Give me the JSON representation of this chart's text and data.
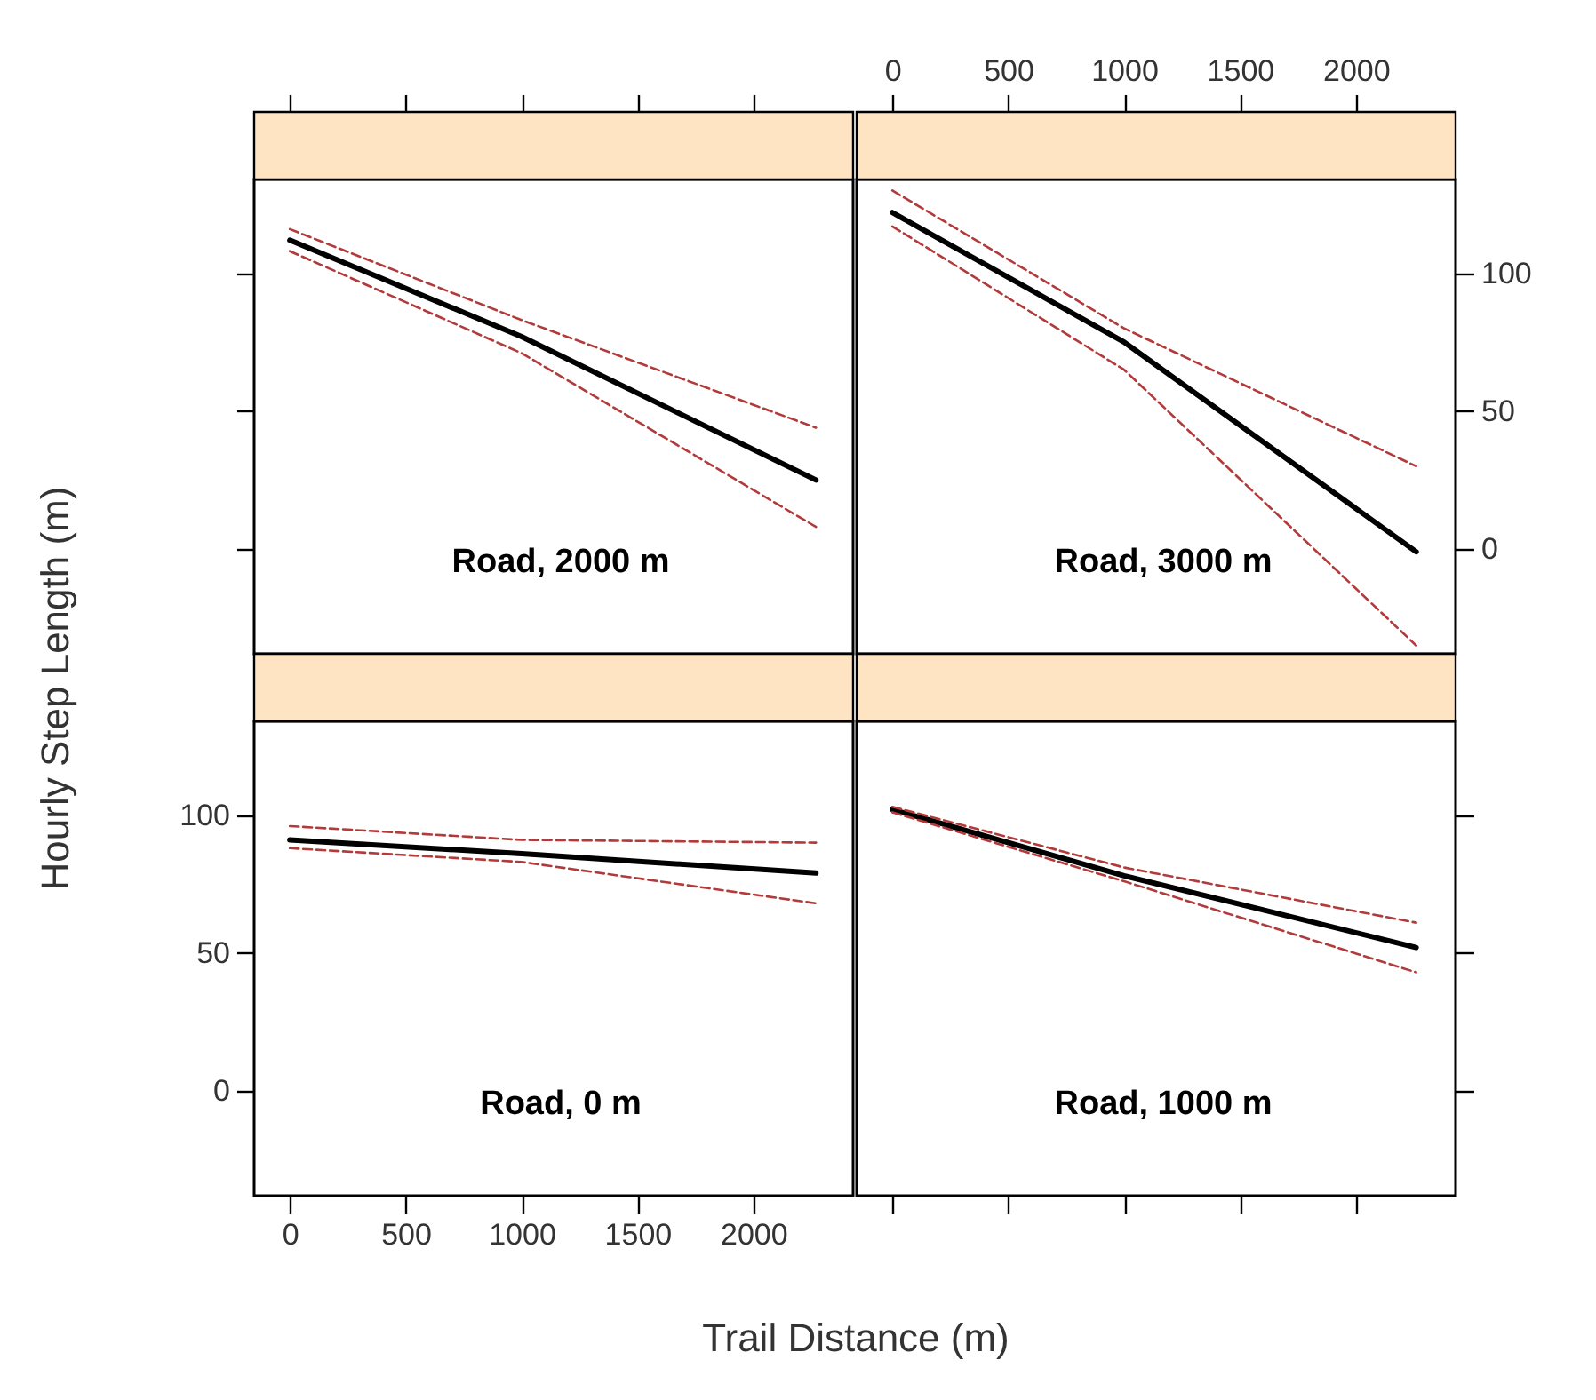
{
  "chart_data": [
    {
      "type": "line",
      "annotations": [
        "Road, 2000 m"
      ],
      "x": [
        0,
        1000,
        2270
      ],
      "xlim": [
        -154,
        2430
      ],
      "xticks": [
        0,
        500,
        1000,
        1500,
        2000
      ],
      "ylim": [
        -38,
        134
      ],
      "yticks": [
        0,
        50,
        100
      ],
      "tick_labels": false,
      "series": [
        {
          "color": "#000000",
          "values": [
            112,
            77,
            25
          ],
          "line_style": "solid"
        },
        {
          "color": "#b23a3a",
          "values": [
            116,
            83,
            44
          ],
          "line_style": "dashed"
        },
        {
          "color": "#b23a3a",
          "values": [
            108,
            71,
            8
          ],
          "line_style": "dashed"
        }
      ]
    },
    {
      "type": "line",
      "annotations": [
        "Road, 3000 m"
      ],
      "x": [
        0,
        1000,
        2260
      ],
      "xlim": [
        -154,
        2430
      ],
      "xticks": [
        0,
        500,
        1000,
        1500,
        2000
      ],
      "ylim": [
        -38,
        134
      ],
      "yticks": [
        0,
        50,
        100
      ],
      "series": [
        {
          "color": "#000000",
          "values": [
            122,
            75,
            -1
          ],
          "line_style": "solid"
        },
        {
          "color": "#b23a3a",
          "values": [
            130,
            80,
            30
          ],
          "line_style": "dashed"
        },
        {
          "color": "#b23a3a",
          "values": [
            117,
            65,
            -35
          ],
          "line_style": "dashed"
        }
      ]
    },
    {
      "type": "line",
      "annotations": [
        "Road, 0 m"
      ],
      "xlabel": "Trail Distance (m)",
      "ylabel": "Hourly Step Length (m)",
      "x": [
        0,
        1000,
        2270
      ],
      "xlim": [
        -154,
        2430
      ],
      "xticks": [
        0,
        500,
        1000,
        1500,
        2000
      ],
      "ylim": [
        -38,
        134
      ],
      "yticks": [
        0,
        50,
        100
      ],
      "series": [
        {
          "color": "#000000",
          "values": [
            91,
            86,
            79
          ],
          "line_style": "solid"
        },
        {
          "color": "#b23a3a",
          "values": [
            96,
            91,
            90
          ],
          "line_style": "dashed"
        },
        {
          "color": "#b23a3a",
          "values": [
            88,
            83,
            68
          ],
          "line_style": "dashed"
        }
      ]
    },
    {
      "type": "line",
      "annotations": [
        "Road, 1000 m"
      ],
      "x": [
        0,
        1000,
        2260
      ],
      "xlim": [
        -154,
        2430
      ],
      "xticks": [
        0,
        500,
        1000,
        1500,
        2000
      ],
      "ylim": [
        -38,
        134
      ],
      "yticks": [
        0,
        50,
        100
      ],
      "tick_labels": false,
      "series": [
        {
          "color": "#000000",
          "values": [
            102,
            78,
            52
          ],
          "line_style": "solid"
        },
        {
          "color": "#b23a3a",
          "values": [
            103,
            81,
            61
          ],
          "line_style": "dashed"
        },
        {
          "color": "#b23a3a",
          "values": [
            101,
            76,
            43
          ],
          "line_style": "dashed"
        }
      ]
    }
  ]
}
